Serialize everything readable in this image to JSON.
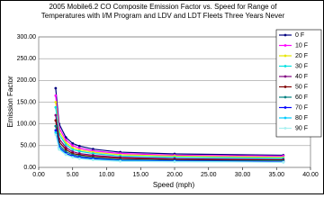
{
  "chart_data": {
    "type": "line",
    "title": "2005 Mobile6.2 CO Composite Emission Factor vs. Speed for Range of Temperatures with I/M Program and LDV and LDT Fleets Three Years Never",
    "x_label": "Speed (mph)",
    "y_label": "Emission Factor",
    "x": [
      2.5,
      3,
      4,
      5,
      6,
      8,
      12,
      20,
      36
    ],
    "series": [
      {
        "name": "0 F",
        "color": "#000080",
        "values": [
          182,
          100,
          69,
          55,
          49,
          42,
          35,
          31,
          28
        ]
      },
      {
        "name": "10 F",
        "color": "#ff00ff",
        "values": [
          165,
          91,
          63,
          50,
          44,
          38,
          32,
          28,
          26
        ]
      },
      {
        "name": "20 F",
        "color": "#e6e600",
        "values": [
          150,
          83,
          57,
          45,
          40,
          35,
          29,
          26,
          23
        ]
      },
      {
        "name": "30 F",
        "color": "#00e0e0",
        "values": [
          138,
          76,
          52,
          41,
          37,
          32,
          26,
          23,
          21
        ]
      },
      {
        "name": "40 F",
        "color": "#800080",
        "values": [
          120,
          66,
          46,
          36,
          32,
          28,
          23,
          20,
          18
        ]
      },
      {
        "name": "50 F",
        "color": "#800000",
        "values": [
          108,
          59,
          41,
          32,
          29,
          25,
          21,
          18,
          17
        ]
      },
      {
        "name": "60 F",
        "color": "#008080",
        "values": [
          95,
          52,
          36,
          29,
          26,
          22,
          18,
          16,
          15
        ]
      },
      {
        "name": "70 F",
        "color": "#0000ff",
        "values": [
          85,
          47,
          32,
          26,
          23,
          20,
          16,
          15,
          13
        ]
      },
      {
        "name": "80 F",
        "color": "#00ccff",
        "values": [
          80,
          44,
          30,
          24,
          21,
          18,
          15,
          14,
          12
        ]
      },
      {
        "name": "90 F",
        "color": "#a8f0f0",
        "values": [
          75,
          41,
          29,
          23,
          20,
          17,
          14,
          13,
          12
        ]
      }
    ],
    "xlim": [
      0,
      40
    ],
    "xticks": [
      {
        "value": 0,
        "label": "0.00"
      },
      {
        "value": 5,
        "label": "5.00"
      },
      {
        "value": 10,
        "label": "10.00"
      },
      {
        "value": 15,
        "label": "15.00"
      },
      {
        "value": 20,
        "label": "20.00"
      },
      {
        "value": 25,
        "label": "25.00"
      },
      {
        "value": 30,
        "label": "30.00"
      },
      {
        "value": 35,
        "label": "35.00"
      },
      {
        "value": 40,
        "label": "40.00"
      }
    ],
    "ylim": [
      0,
      300
    ],
    "yticks": [
      {
        "value": 0,
        "label": "0.00"
      },
      {
        "value": 50,
        "label": "50.00"
      },
      {
        "value": 100,
        "label": "100.00"
      },
      {
        "value": 150,
        "label": "150.00"
      },
      {
        "value": 200,
        "label": "200.00"
      },
      {
        "value": 250,
        "label": "250.00"
      },
      {
        "value": 300,
        "label": "300.00"
      }
    ],
    "grid": true
  }
}
